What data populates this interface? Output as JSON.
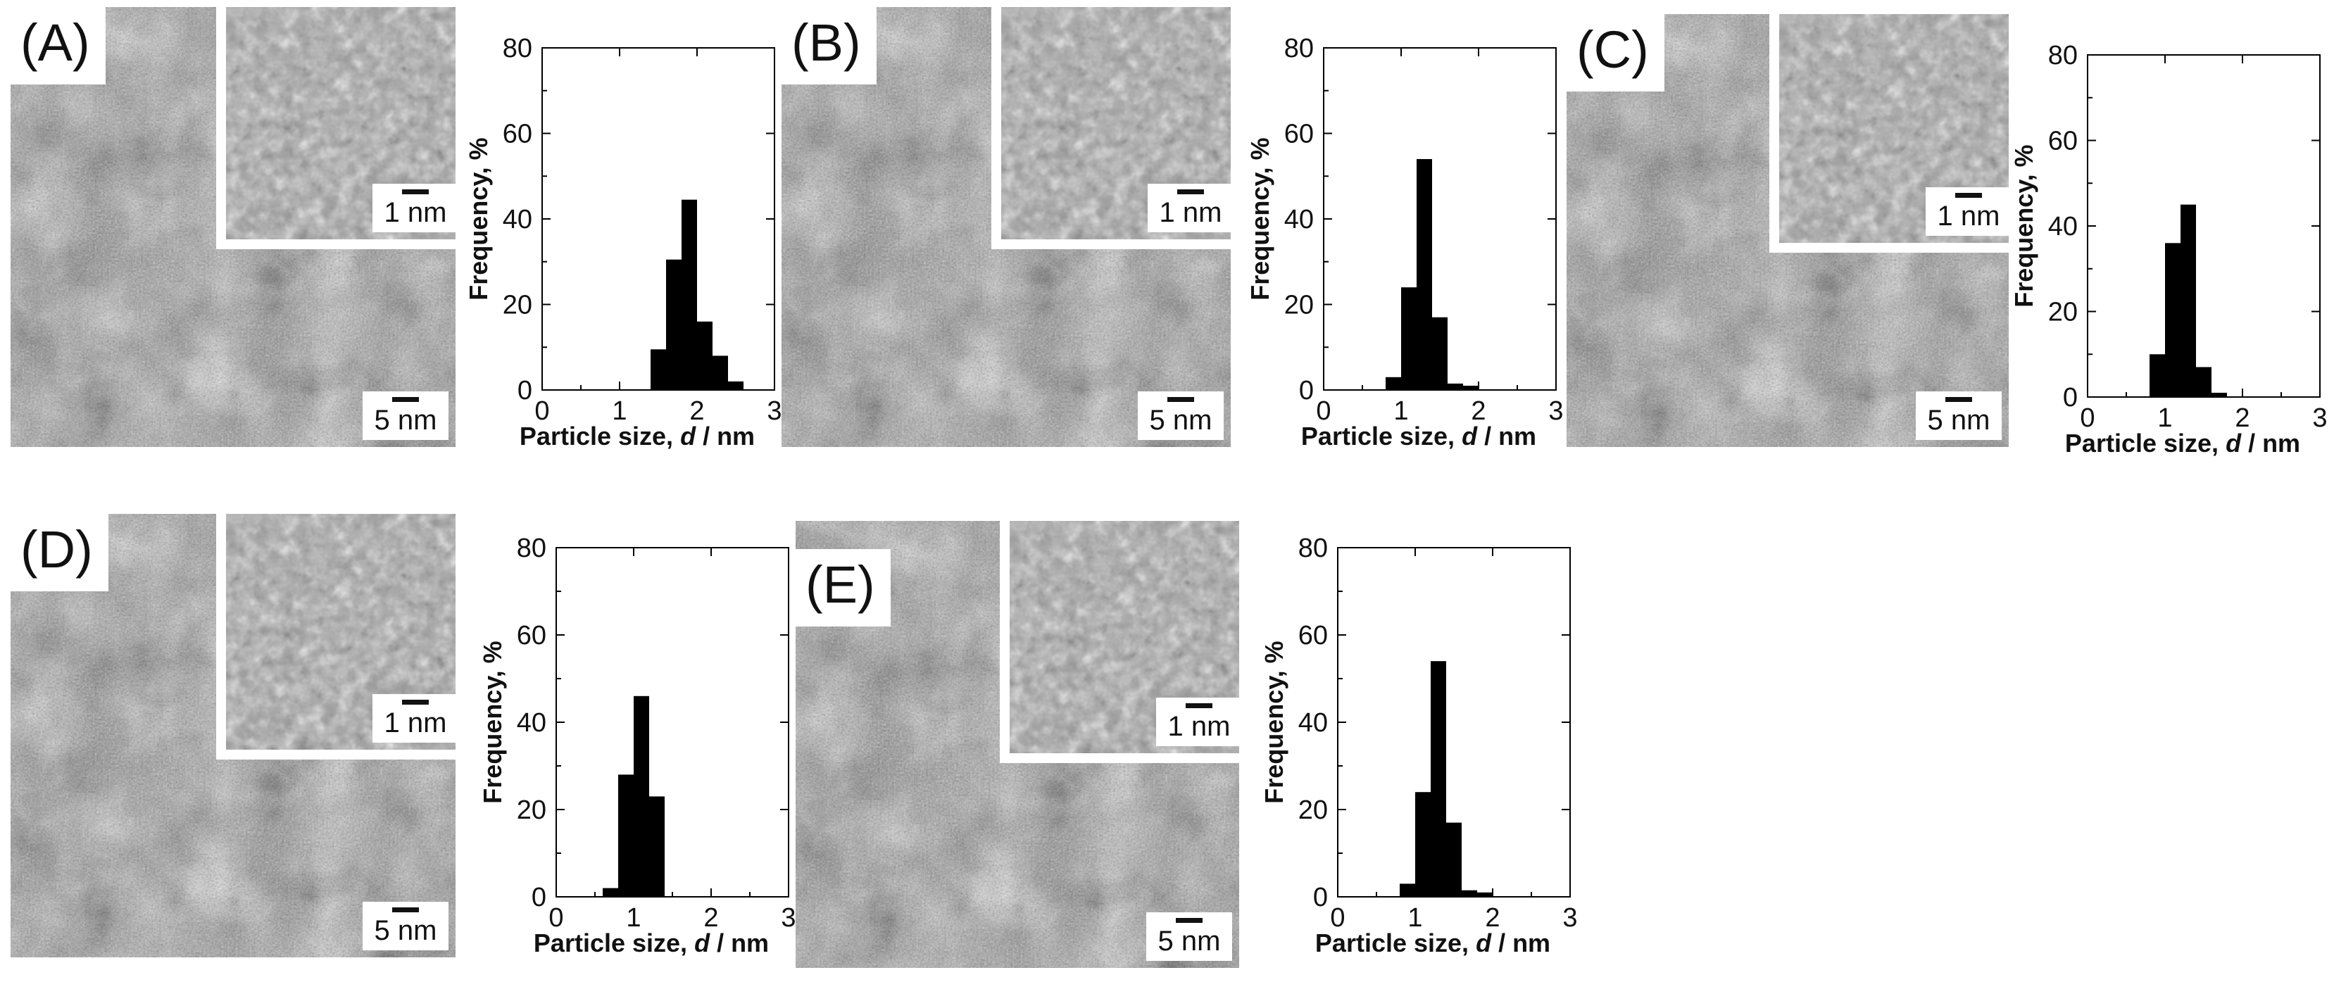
{
  "figure": {
    "panels": [
      {
        "id": "A",
        "label": "(A)",
        "inset_scale": "1 nm",
        "main_scale": "5 nm"
      },
      {
        "id": "B",
        "label": "(B)",
        "inset_scale": "1 nm",
        "main_scale": "5 nm"
      },
      {
        "id": "C",
        "label": "(C)",
        "inset_scale": "1 nm",
        "main_scale": "5 nm"
      },
      {
        "id": "D",
        "label": "(D)",
        "inset_scale": "1 nm",
        "main_scale": "5 nm"
      },
      {
        "id": "E",
        "label": "(E)",
        "inset_scale": "1 nm",
        "main_scale": "5 nm"
      }
    ]
  },
  "chart_data": [
    {
      "panel": "A",
      "type": "bar",
      "xlabel": "Particle size, d / nm",
      "ylabel": "Frequency, %",
      "xlim": [
        0,
        3
      ],
      "ylim": [
        0,
        80
      ],
      "xticks": [
        0,
        1,
        2,
        3
      ],
      "yticks": [
        0,
        20,
        40,
        60,
        80
      ],
      "bin_width": 0.2,
      "bins": [
        1.4,
        1.6,
        1.8,
        2.0,
        2.2,
        2.4
      ],
      "values": [
        9.5,
        30.5,
        44.5,
        16,
        8,
        2
      ]
    },
    {
      "panel": "B",
      "type": "bar",
      "xlabel": "Particle size, d / nm",
      "ylabel": "Frequency, %",
      "xlim": [
        0,
        3
      ],
      "ylim": [
        0,
        80
      ],
      "xticks": [
        0,
        1,
        2,
        3
      ],
      "yticks": [
        0,
        20,
        40,
        60,
        80
      ],
      "bin_width": 0.2,
      "bins": [
        0.8,
        1.0,
        1.2,
        1.4,
        1.6,
        1.8
      ],
      "values": [
        3,
        24,
        54,
        17,
        1.5,
        1
      ]
    },
    {
      "panel": "C",
      "type": "bar",
      "xlabel": "Particle size, d / nm",
      "ylabel": "Frequency, %",
      "xlim": [
        0,
        3
      ],
      "ylim": [
        0,
        80
      ],
      "xticks": [
        0,
        1,
        2,
        3
      ],
      "yticks": [
        0,
        20,
        40,
        60,
        80
      ],
      "bin_width": 0.2,
      "bins": [
        0.8,
        1.0,
        1.2,
        1.4,
        1.6
      ],
      "values": [
        10,
        36,
        45,
        7,
        1
      ]
    },
    {
      "panel": "D",
      "type": "bar",
      "xlabel": "Particle size, d / nm",
      "ylabel": "Frequency, %",
      "xlim": [
        0,
        3
      ],
      "ylim": [
        0,
        80
      ],
      "xticks": [
        0,
        1,
        2,
        3
      ],
      "yticks": [
        0,
        20,
        40,
        60,
        80
      ],
      "bin_width": 0.2,
      "bins": [
        0.6,
        0.8,
        1.0,
        1.2,
        1.4
      ],
      "values": [
        2,
        28,
        46,
        23,
        0
      ]
    },
    {
      "panel": "E",
      "type": "bar",
      "xlabel": "Particle size, d / nm",
      "ylabel": "Frequency, %",
      "xlim": [
        0,
        3
      ],
      "ylim": [
        0,
        80
      ],
      "xticks": [
        0,
        1,
        2,
        3
      ],
      "yticks": [
        0,
        20,
        40,
        60,
        80
      ],
      "bin_width": 0.2,
      "bins": [
        0.8,
        1.0,
        1.2,
        1.4,
        1.6,
        1.8
      ],
      "values": [
        3,
        24,
        54,
        17,
        1.5,
        1
      ]
    }
  ]
}
